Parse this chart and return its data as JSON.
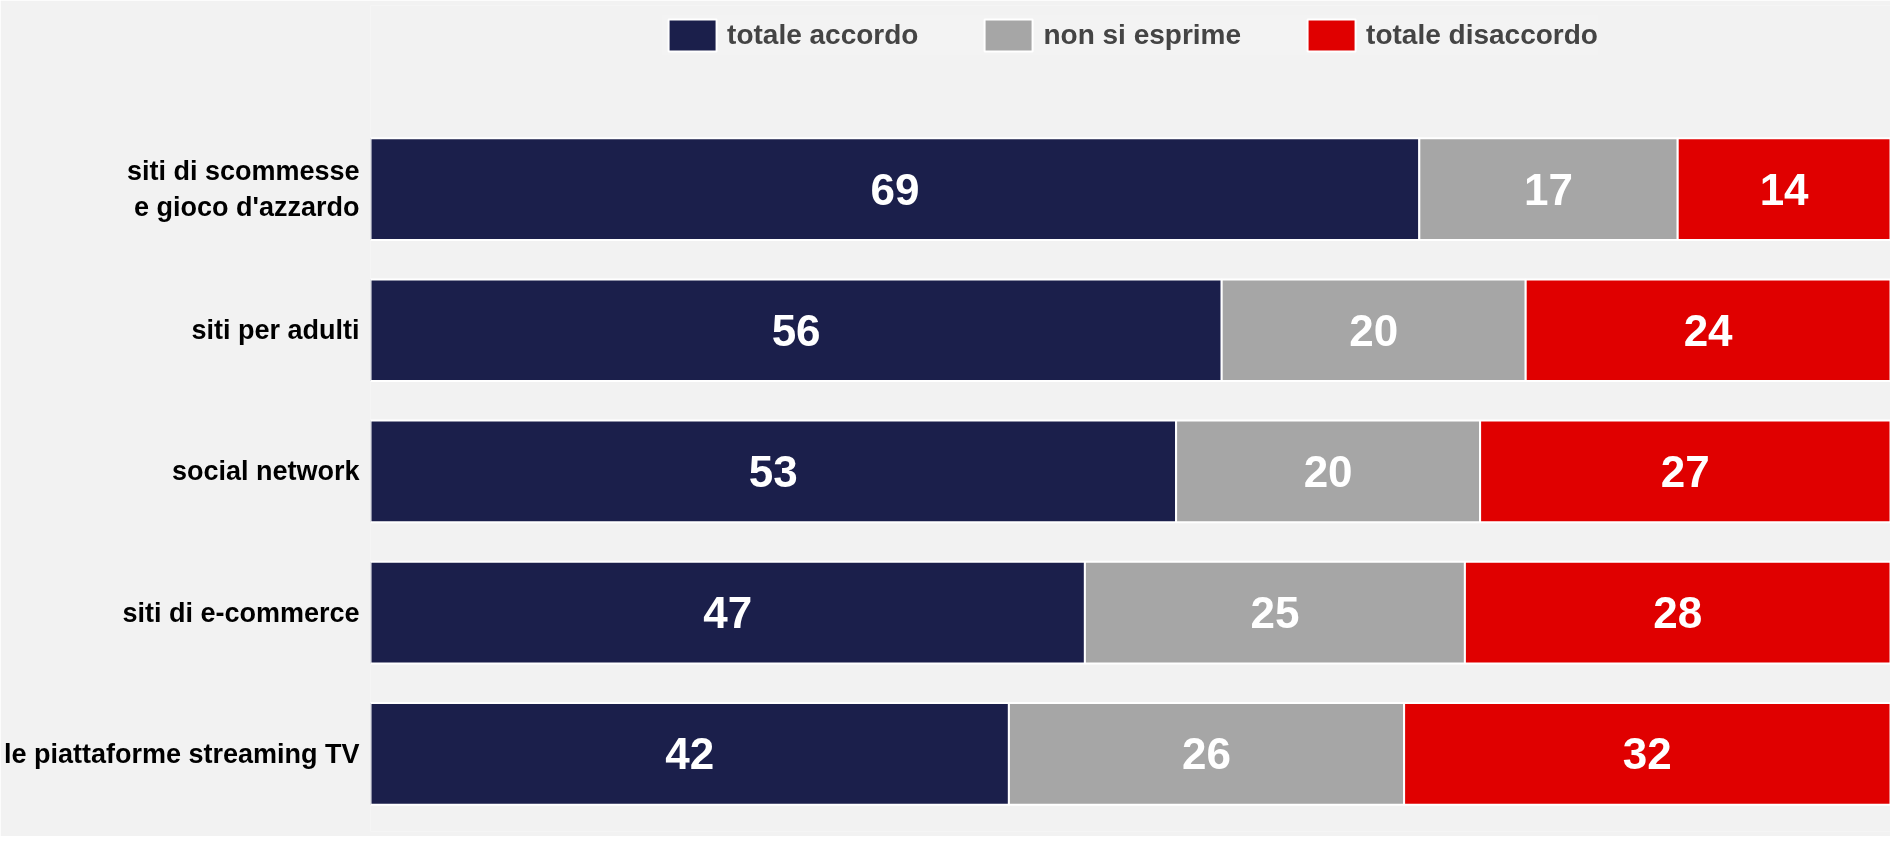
{
  "chart_data": {
    "type": "bar",
    "orientation": "horizontal",
    "stacked": true,
    "data_labels": true,
    "legend": "top",
    "tick_labels": "y",
    "xlim": [
      0,
      100
    ],
    "categories": [
      "siti di scommesse e gioco d'azzardo",
      "siti per adulti",
      "social network",
      "siti di e-commerce",
      "le piattaforme streaming TV"
    ],
    "series": [
      {
        "name": "totale accordo",
        "color": "#1b1f4b",
        "values": [
          69,
          56,
          53,
          47,
          42
        ]
      },
      {
        "name": "non si esprime",
        "color": "#a6a6a6",
        "values": [
          17,
          20,
          20,
          25,
          26
        ]
      },
      {
        "name": "totale disaccordo",
        "color": "#e00000",
        "values": [
          14,
          24,
          27,
          28,
          32
        ]
      }
    ]
  }
}
